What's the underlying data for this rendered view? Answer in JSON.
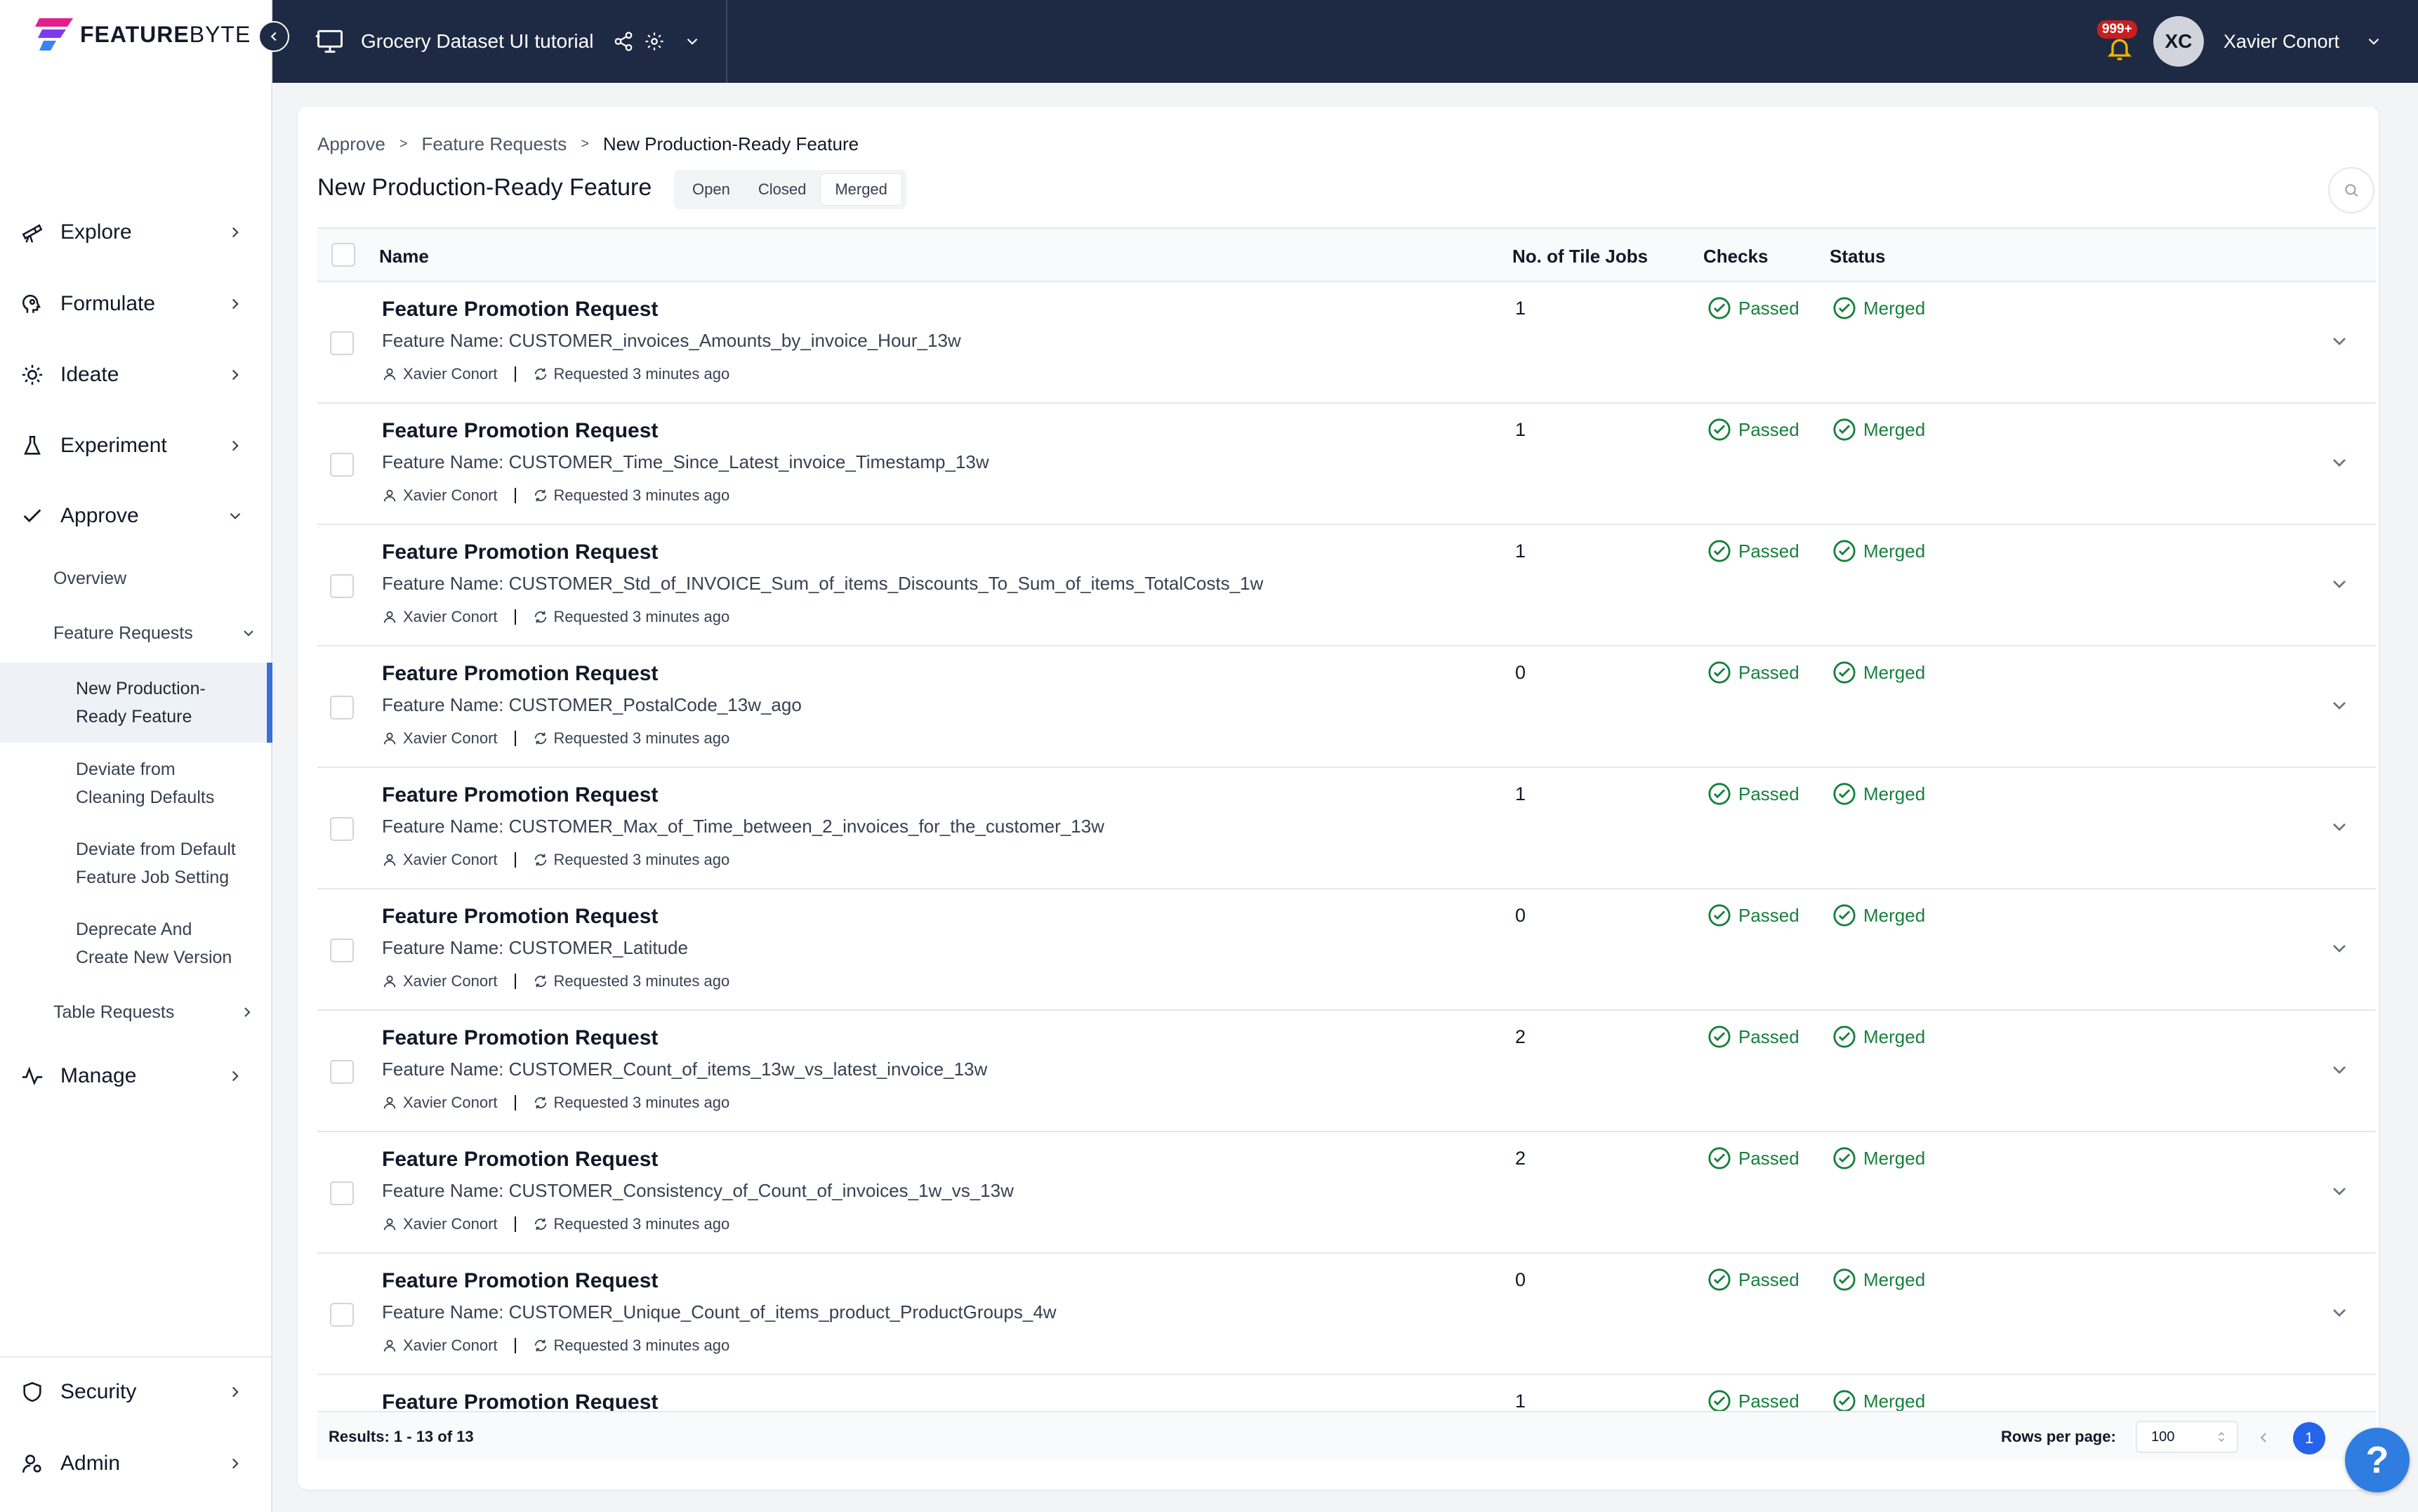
{
  "brand": {
    "name_bold": "FEATURE",
    "name_light": "BYTE"
  },
  "header": {
    "project_name": "Grocery Dataset UI tutorial",
    "notification_count": "999+",
    "user_initials": "XC",
    "user_name": "Xavier Conort"
  },
  "sidebar": {
    "nav": [
      {
        "label": "Explore",
        "icon": "telescope-icon"
      },
      {
        "label": "Formulate",
        "icon": "head-icon"
      },
      {
        "label": "Ideate",
        "icon": "lightbulb-icon"
      },
      {
        "label": "Experiment",
        "icon": "flask-icon"
      },
      {
        "label": "Approve",
        "icon": "check-icon"
      }
    ],
    "approve_sub": {
      "overview": "Overview",
      "feature_requests": "Feature Requests",
      "items": [
        {
          "line1": "New Production-",
          "line2": "Ready Feature"
        },
        {
          "line1": "Deviate from",
          "line2": "Cleaning Defaults"
        },
        {
          "line1": "Deviate from Default",
          "line2": "Feature Job Setting"
        },
        {
          "line1": "Deprecate And",
          "line2": "Create New Version"
        }
      ],
      "table_requests": "Table Requests"
    },
    "manage": "Manage",
    "security": "Security",
    "admin": "Admin"
  },
  "breadcrumb": [
    "Approve",
    ">",
    "Feature Requests",
    ">",
    "New Production-Ready Feature"
  ],
  "page_title": "New Production-Ready Feature",
  "filter_tabs": [
    "Open",
    "Closed",
    "Merged"
  ],
  "selected_tab": "Merged",
  "table": {
    "columns": {
      "name": "Name",
      "tiles": "No. of Tile Jobs",
      "checks": "Checks",
      "status": "Status"
    },
    "rows": [
      {
        "title": "Feature Promotion Request",
        "feature": "Feature Name: CUSTOMER_invoices_Amounts_by_invoice_Hour_13w",
        "user": "Xavier Conort",
        "requested": "Requested 3 minutes ago",
        "tiles": "1",
        "checks": "Passed",
        "status": "Merged"
      },
      {
        "title": "Feature Promotion Request",
        "feature": "Feature Name: CUSTOMER_Time_Since_Latest_invoice_Timestamp_13w",
        "user": "Xavier Conort",
        "requested": "Requested 3 minutes ago",
        "tiles": "1",
        "checks": "Passed",
        "status": "Merged"
      },
      {
        "title": "Feature Promotion Request",
        "feature": "Feature Name: CUSTOMER_Std_of_INVOICE_Sum_of_items_Discounts_To_Sum_of_items_TotalCosts_1w",
        "user": "Xavier Conort",
        "requested": "Requested 3 minutes ago",
        "tiles": "1",
        "checks": "Passed",
        "status": "Merged"
      },
      {
        "title": "Feature Promotion Request",
        "feature": "Feature Name: CUSTOMER_PostalCode_13w_ago",
        "user": "Xavier Conort",
        "requested": "Requested 3 minutes ago",
        "tiles": "0",
        "checks": "Passed",
        "status": "Merged"
      },
      {
        "title": "Feature Promotion Request",
        "feature": "Feature Name: CUSTOMER_Max_of_Time_between_2_invoices_for_the_customer_13w",
        "user": "Xavier Conort",
        "requested": "Requested 3 minutes ago",
        "tiles": "1",
        "checks": "Passed",
        "status": "Merged"
      },
      {
        "title": "Feature Promotion Request",
        "feature": "Feature Name: CUSTOMER_Latitude",
        "user": "Xavier Conort",
        "requested": "Requested 3 minutes ago",
        "tiles": "0",
        "checks": "Passed",
        "status": "Merged"
      },
      {
        "title": "Feature Promotion Request",
        "feature": "Feature Name: CUSTOMER_Count_of_items_13w_vs_latest_invoice_13w",
        "user": "Xavier Conort",
        "requested": "Requested 3 minutes ago",
        "tiles": "2",
        "checks": "Passed",
        "status": "Merged"
      },
      {
        "title": "Feature Promotion Request",
        "feature": "Feature Name: CUSTOMER_Consistency_of_Count_of_invoices_1w_vs_13w",
        "user": "Xavier Conort",
        "requested": "Requested 3 minutes ago",
        "tiles": "2",
        "checks": "Passed",
        "status": "Merged"
      },
      {
        "title": "Feature Promotion Request",
        "feature": "Feature Name: CUSTOMER_Unique_Count_of_items_product_ProductGroups_4w",
        "user": "Xavier Conort",
        "requested": "Requested 3 minutes ago",
        "tiles": "0",
        "checks": "Passed",
        "status": "Merged"
      },
      {
        "title": "Feature Promotion Request",
        "feature": "",
        "user": "",
        "requested": "",
        "tiles": "1",
        "checks": "Passed",
        "status": "Merged"
      }
    ]
  },
  "footer": {
    "results": "Results: 1 - 13 of 13",
    "rows_per_page_label": "Rows per page:",
    "rows_per_page": "100",
    "current_page": "1"
  },
  "help_label": "?",
  "colors": {
    "topbar": "#1e2a44",
    "accent": "#3b6fd4",
    "success": "#16803c",
    "page_button": "#2563eb"
  }
}
